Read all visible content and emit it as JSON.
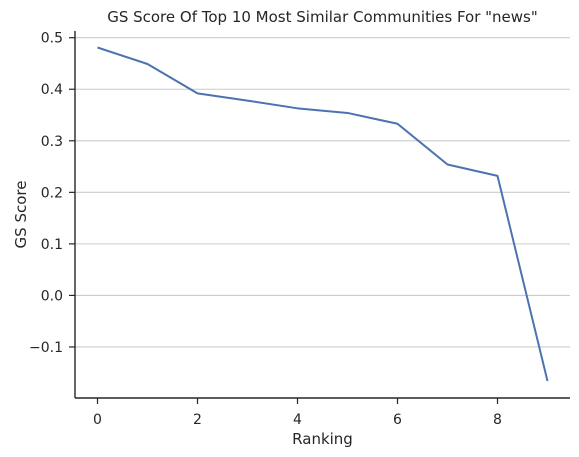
{
  "chart_data": {
    "type": "line",
    "title": "GS Score Of Top 10 Most Similar Communities For \"news\"",
    "xlabel": "Ranking",
    "ylabel": "GS Score",
    "x": [
      0,
      1,
      2,
      3,
      4,
      5,
      6,
      7,
      8,
      9
    ],
    "series": [
      {
        "values": [
          0.481,
          0.449,
          0.392,
          0.378,
          0.363,
          0.354,
          0.333,
          0.254,
          0.232,
          -0.166
        ]
      }
    ],
    "xlim": [
      -0.45,
      9.45
    ],
    "ylim": [
      -0.199,
      0.513
    ],
    "xticks": [
      0,
      2,
      4,
      6,
      8
    ],
    "xtick_labels": [
      "0",
      "2",
      "4",
      "6",
      "8"
    ],
    "yticks": [
      -0.1,
      0.0,
      0.1,
      0.2,
      0.3,
      0.4,
      0.5
    ],
    "ytick_labels": [
      "−0.1",
      "0.0",
      "0.1",
      "0.2",
      "0.3",
      "0.4",
      "0.5"
    ],
    "grid": "y",
    "line_color": "#4c72b0",
    "grid_color": "#cccccc",
    "axis_color": "#262626"
  }
}
